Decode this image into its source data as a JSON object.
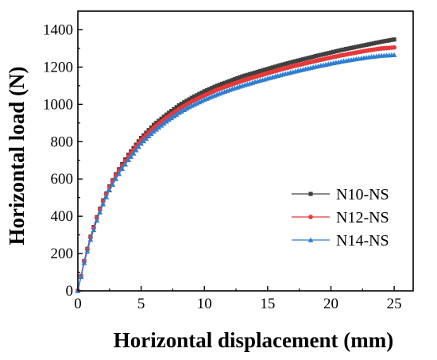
{
  "chart_data": {
    "type": "line",
    "xlabel": "Horizontal displacement (mm)",
    "ylabel": "Horizontal load (N)",
    "xlim": [
      0,
      26.5
    ],
    "ylim": [
      0,
      1500
    ],
    "xticks": [
      0,
      5,
      10,
      15,
      20,
      25
    ],
    "yticks": [
      0,
      200,
      400,
      600,
      800,
      1000,
      1200,
      1400
    ],
    "xtick_labels": [
      "0",
      "5",
      "10",
      "15",
      "20",
      "25"
    ],
    "ytick_labels": [
      "0",
      "200",
      "400",
      "600",
      "800",
      "1000",
      "1200",
      "1400"
    ],
    "grid": false,
    "legend_position": "right",
    "series": [
      {
        "name": "N10-NS",
        "color": "#404040",
        "marker": "square",
        "x": [
          0,
          0.5,
          1,
          1.5,
          2,
          2.5,
          3,
          3.5,
          4,
          5,
          6,
          7,
          8,
          9,
          10,
          11,
          12,
          13,
          14,
          15,
          16,
          17,
          18,
          19,
          20,
          21,
          22,
          23,
          24,
          25
        ],
        "y": [
          0,
          160,
          290,
          395,
          485,
          560,
          625,
          680,
          730,
          820,
          890,
          945,
          995,
          1035,
          1070,
          1100,
          1125,
          1150,
          1170,
          1190,
          1210,
          1228,
          1245,
          1262,
          1278,
          1294,
          1308,
          1322,
          1336,
          1348
        ]
      },
      {
        "name": "N12-NS",
        "color": "#e8393a",
        "marker": "circle",
        "x": [
          0,
          0.5,
          1,
          1.5,
          2,
          2.5,
          3,
          3.5,
          4,
          5,
          6,
          7,
          8,
          9,
          10,
          11,
          12,
          13,
          14,
          15,
          16,
          17,
          18,
          19,
          20,
          21,
          22,
          23,
          24,
          25
        ],
        "y": [
          0,
          158,
          285,
          390,
          480,
          555,
          618,
          672,
          720,
          808,
          875,
          928,
          975,
          1015,
          1048,
          1078,
          1103,
          1126,
          1147,
          1167,
          1186,
          1204,
          1220,
          1236,
          1251,
          1265,
          1278,
          1290,
          1300,
          1305
        ]
      },
      {
        "name": "N14-NS",
        "color": "#2c7fd4",
        "marker": "triangle",
        "x": [
          0,
          0.5,
          1,
          1.5,
          2,
          2.5,
          3,
          3.5,
          4,
          5,
          6,
          7,
          8,
          9,
          10,
          11,
          12,
          13,
          14,
          15,
          16,
          17,
          18,
          19,
          20,
          21,
          22,
          23,
          24,
          25
        ],
        "y": [
          0,
          150,
          275,
          378,
          465,
          540,
          600,
          655,
          702,
          790,
          855,
          908,
          955,
          993,
          1025,
          1053,
          1078,
          1100,
          1120,
          1139,
          1157,
          1174,
          1190,
          1205,
          1219,
          1232,
          1243,
          1253,
          1261,
          1265
        ]
      }
    ]
  }
}
